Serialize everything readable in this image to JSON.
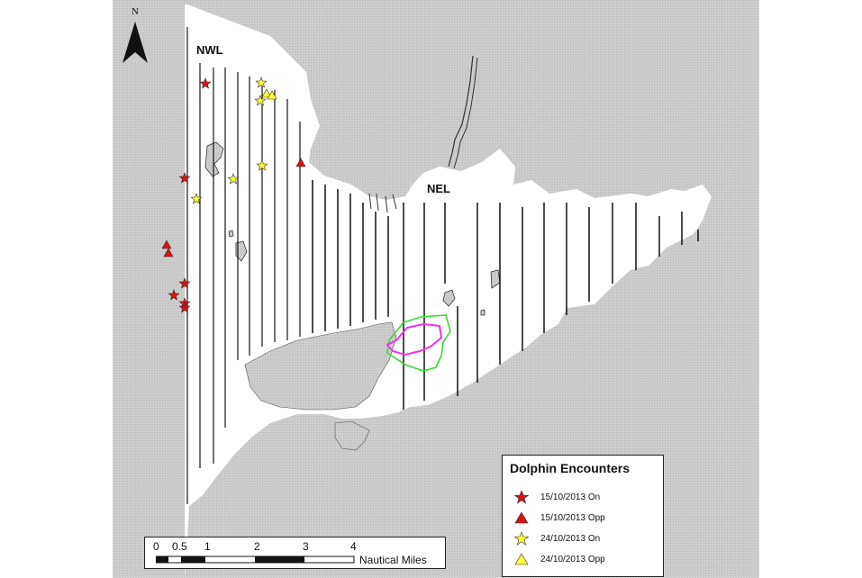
{
  "map": {
    "north_label": "N",
    "areas": [
      {
        "id": "nwl",
        "label": "NWL"
      },
      {
        "id": "nel",
        "label": "NEL"
      }
    ],
    "colors": {
      "land": "#c8c8c8",
      "sea": "#ffffff",
      "transect": "#000000",
      "zone_outer": "#33dd33",
      "zone_inner": "#ee33ee",
      "red_marker": "#dd1111",
      "yellow_marker": "#ffff33"
    }
  },
  "legend": {
    "title": "Dolphin Encounters",
    "items": [
      {
        "label": "15/10/2013 On",
        "symbol": "star",
        "color": "#dd1111"
      },
      {
        "label": "15/10/2013 Opp",
        "symbol": "triangle",
        "color": "#dd1111"
      },
      {
        "label": "24/10/2013 On",
        "symbol": "star",
        "color": "#ffff33"
      },
      {
        "label": "24/10/2013 Opp",
        "symbol": "triangle",
        "color": "#ffff33"
      }
    ]
  },
  "scale_bar": {
    "ticks": [
      "0",
      "0.5",
      "1",
      "2",
      "3",
      "4"
    ],
    "unit": "Nautical Miles"
  }
}
